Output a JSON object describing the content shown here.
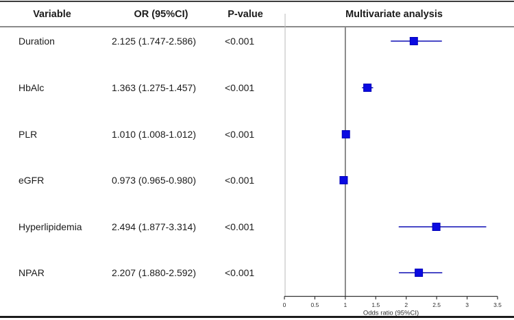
{
  "figure": {
    "columns": {
      "variable": "Variable",
      "or_ci": "OR (95%CI)",
      "p_value": "P-value",
      "plot_title": "Multivariate analysis"
    },
    "rows": [
      {
        "variable": "Duration",
        "or_ci": "2.125 (1.747-2.586)",
        "p_value": "<0.001"
      },
      {
        "variable": "HbAlc",
        "or_ci": "1.363 (1.275-1.457)",
        "p_value": "<0.001"
      },
      {
        "variable": "PLR",
        "or_ci": "1.010 (1.008-1.012)",
        "p_value": "<0.001"
      },
      {
        "variable": "eGFR",
        "or_ci": "0.973 (0.965-0.980)",
        "p_value": "<0.001"
      },
      {
        "variable": "Hyperlipidemia",
        "or_ci": "2.494 (1.877-3.314)",
        "p_value": "<0.001"
      },
      {
        "variable": "NPAR",
        "or_ci": "2.207 (1.880-2.592)",
        "p_value": "<0.001"
      }
    ]
  },
  "chart_data": {
    "type": "forest",
    "title": "Multivariate analysis",
    "xlabel": "Odds ratio (95%CI)",
    "xlim": [
      0,
      3.5
    ],
    "xticks": [
      0,
      0.5,
      1,
      1.5,
      2,
      2.5,
      3,
      3.5
    ],
    "reference_line": 1,
    "grid": false,
    "legend": "none",
    "categories": [
      "Duration",
      "HbAlc",
      "PLR",
      "eGFR",
      "Hyperlipidemia",
      "NPAR"
    ],
    "series": [
      {
        "name": "OR",
        "values": [
          2.125,
          1.363,
          1.01,
          0.973,
          2.494,
          2.207
        ]
      },
      {
        "name": "CI_low",
        "values": [
          1.747,
          1.275,
          1.008,
          0.965,
          1.877,
          1.88
        ]
      },
      {
        "name": "CI_high",
        "values": [
          2.586,
          1.457,
          1.012,
          0.98,
          3.314,
          2.592
        ]
      }
    ],
    "marker": "square"
  },
  "colors": {
    "marker_fill": "#0a0ae1",
    "marker_stroke": "#0000b8",
    "ci_line": "#4848c6",
    "reference_line": "#6f6f6f",
    "zero_axis": "#b9b9b9",
    "axis": "#333333",
    "text": "#1b1b1b",
    "border_top": "#3c3c3c",
    "separator": "#8a8a8a",
    "border_bottom": "#1a1a1a"
  }
}
